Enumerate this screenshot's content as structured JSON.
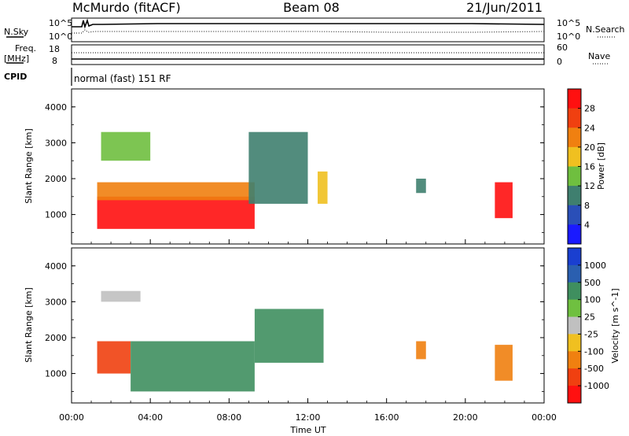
{
  "header": {
    "station": "McMurdo (fitACF)",
    "beam": "Beam 08",
    "date": "21/Jun/2011"
  },
  "strip_panels": {
    "sky_label": "N.Sky",
    "search_label": "N.Search",
    "freq_label_1": "Freq.",
    "freq_label_2": "[MHz]",
    "nave_label": "Nave",
    "cpid_label": "CPID",
    "sky_ticks": [
      "10^5",
      "10^0"
    ],
    "search_ticks": [
      "10^5",
      "10^0"
    ],
    "freq_ticks": [
      "18",
      "8"
    ],
    "nave_ticks": [
      "60",
      "0"
    ],
    "cpid_text": "normal (fast) 151 RF"
  },
  "chart_data": [
    {
      "type": "heatmap",
      "title": "",
      "xlabel": "",
      "ylabel": "Slant Range [km]",
      "xlim": [
        0,
        24
      ],
      "ylim": [
        180,
        4500
      ],
      "y_ticks": [
        "1000",
        "2000",
        "3000",
        "4000"
      ],
      "colorbar": {
        "label": "Power [dB]",
        "ticks": [
          "4",
          "8",
          "12",
          "16",
          "20",
          "24",
          "28"
        ],
        "colors": [
          "#1a1aff",
          "#2a4fb8",
          "#3f7f6f",
          "#6fbf3f",
          "#f0c020",
          "#f08010",
          "#f04010",
          "#ff1010"
        ]
      },
      "regions": [
        {
          "t0": 1.3,
          "t1": 9.3,
          "r0": 600,
          "r1": 1500,
          "level": 7
        },
        {
          "t0": 1.3,
          "t1": 9.3,
          "r0": 1400,
          "r1": 1900,
          "level": 5
        },
        {
          "t0": 1.5,
          "t1": 4.0,
          "r0": 2500,
          "r1": 3300,
          "level": 3
        },
        {
          "t0": 9.0,
          "t1": 12.0,
          "r0": 1300,
          "r1": 3300,
          "level": 2
        },
        {
          "t0": 12.5,
          "t1": 13.0,
          "r0": 1300,
          "r1": 2200,
          "level": 4
        },
        {
          "t0": 17.5,
          "t1": 18.0,
          "r0": 1600,
          "r1": 2000,
          "level": 2
        },
        {
          "t0": 21.5,
          "t1": 22.4,
          "r0": 900,
          "r1": 1900,
          "level": 7
        }
      ]
    },
    {
      "type": "heatmap",
      "title": "",
      "xlabel": "Time UT",
      "ylabel": "Slant Range [km]",
      "xlim": [
        0,
        24
      ],
      "ylim": [
        180,
        4500
      ],
      "x_ticks": [
        "00:00",
        "04:00",
        "08:00",
        "12:00",
        "16:00",
        "20:00",
        "00:00"
      ],
      "y_ticks": [
        "1000",
        "2000",
        "3000",
        "4000"
      ],
      "colorbar": {
        "label": "Velocity [m s^-1]",
        "ticks": [
          "1000",
          "500",
          "100",
          "25",
          "-25",
          "-100",
          "-500",
          "-1000"
        ],
        "colors": [
          "#1a3fd0",
          "#2a5fb0",
          "#3f8f5f",
          "#6fc040",
          "#c0c0c0",
          "#f0c020",
          "#f08010",
          "#f04010",
          "#ff1010"
        ]
      },
      "regions": [
        {
          "t0": 1.3,
          "t1": 3.0,
          "r0": 1000,
          "r1": 1900,
          "level": 7
        },
        {
          "t0": 3.0,
          "t1": 9.3,
          "r0": 500,
          "r1": 1900,
          "level": 2
        },
        {
          "t0": 1.5,
          "t1": 3.5,
          "r0": 3000,
          "r1": 3300,
          "level": 4
        },
        {
          "t0": 9.3,
          "t1": 12.8,
          "r0": 1300,
          "r1": 2800,
          "level": 2
        },
        {
          "t0": 17.5,
          "t1": 18.0,
          "r0": 1400,
          "r1": 1900,
          "level": 6
        },
        {
          "t0": 21.5,
          "t1": 22.4,
          "r0": 800,
          "r1": 1800,
          "level": 6
        }
      ]
    }
  ]
}
